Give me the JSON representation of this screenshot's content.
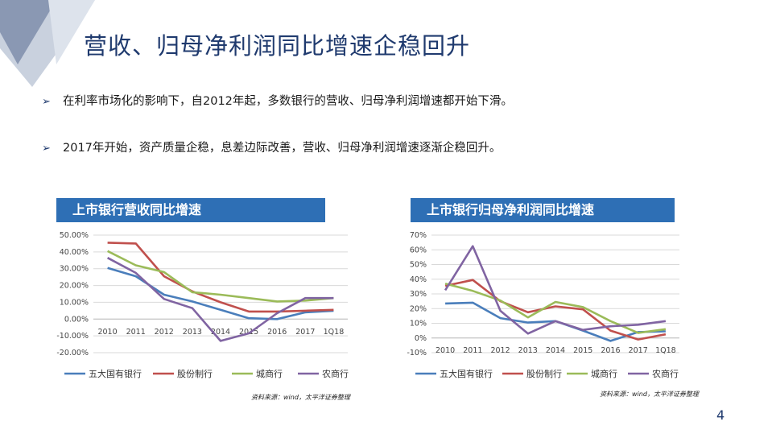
{
  "slide": {
    "title": "营收、归母净利润同比增速企稳回升",
    "bullets": [
      "在利率市场化的影响下，自2012年起，多数银行的营收、归母净利润增速都开始下滑。",
      "2017年开始，资产质量企稳，息差边际改善，营收、归母净利润增速逐渐企稳回升。"
    ],
    "bullet_icon": "arrow-bullet-icon",
    "page_number": "4",
    "colors": {
      "title": "#1f3a6e",
      "header_bg": "#2e6fb5"
    }
  },
  "chart_data": [
    {
      "type": "line",
      "title": "上市银行营收同比增速",
      "x": [
        "2010",
        "2011",
        "2012",
        "2013",
        "2014",
        "2015",
        "2016",
        "2017",
        "1Q18"
      ],
      "ytick_labels": [
        "50.00%",
        "40.00%",
        "30.00%",
        "20.00%",
        "10.00%",
        "0.00%",
        "-10.00%",
        "-20.00%"
      ],
      "ylim": [
        -20,
        50
      ],
      "grid": true,
      "legend": "bottom",
      "source": "资料来源：wind，太平洋证券整理",
      "series": [
        {
          "name": "五大国有银行",
          "color": "#4a7ebb",
          "values": [
            30.5,
            25.5,
            14.5,
            10.5,
            5.5,
            0.5,
            0.0,
            4.0,
            5.0
          ]
        },
        {
          "name": "股份制行",
          "color": "#c0504d",
          "values": [
            45.5,
            45.0,
            25.5,
            16.5,
            10.0,
            4.5,
            4.5,
            5.0,
            5.5
          ]
        },
        {
          "name": "城商行",
          "color": "#9bbb59",
          "values": [
            40.5,
            32.0,
            28.0,
            16.0,
            14.5,
            12.5,
            10.5,
            11.0,
            12.5
          ]
        },
        {
          "name": "农商行",
          "color": "#8064a2",
          "values": [
            36.5,
            27.5,
            12.0,
            6.5,
            -13.0,
            -8.5,
            3.5,
            12.5,
            12.5
          ]
        }
      ]
    },
    {
      "type": "line",
      "title": "上市银行归母净利润同比增速",
      "x": [
        "2010",
        "2011",
        "2012",
        "2013",
        "2014",
        "2015",
        "2016",
        "2017",
        "1Q18"
      ],
      "ytick_labels": [
        "70%",
        "60%",
        "50%",
        "40%",
        "30%",
        "20%",
        "10%",
        "0%",
        "-10%"
      ],
      "ylim": [
        -10,
        70
      ],
      "grid": true,
      "legend": "bottom",
      "source": "资料来源：wind，太平洋证券整理",
      "series": [
        {
          "name": "五大国有银行",
          "color": "#4a7ebb",
          "values": [
            23.5,
            24.0,
            13.5,
            10.5,
            11.5,
            5.0,
            -2.0,
            4.0,
            4.5
          ]
        },
        {
          "name": "股份制行",
          "color": "#c0504d",
          "values": [
            35.5,
            39.5,
            25.0,
            17.5,
            21.5,
            19.5,
            5.0,
            -1.0,
            2.5
          ]
        },
        {
          "name": "城商行",
          "color": "#9bbb59",
          "values": [
            37.0,
            32.0,
            25.5,
            14.0,
            24.5,
            21.0,
            11.5,
            3.5,
            6.0
          ]
        },
        {
          "name": "农商行",
          "color": "#8064a2",
          "values": [
            32.5,
            62.5,
            18.5,
            3.0,
            11.5,
            5.5,
            8.0,
            9.0,
            11.5
          ]
        }
      ]
    }
  ]
}
